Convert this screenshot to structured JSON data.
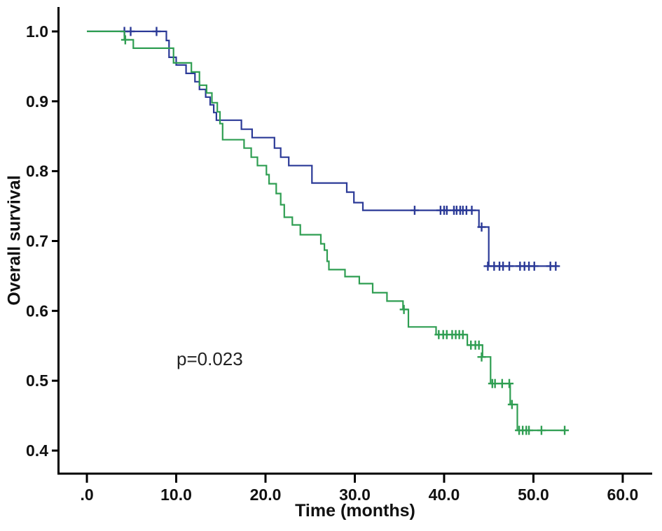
{
  "figure": {
    "background": "#ffffff",
    "axis_color": "#000000"
  },
  "chart_data": {
    "type": "line",
    "subtype": "kaplan-meier-step",
    "title": "",
    "xlabel": "Time (months)",
    "ylabel": "Overall survival",
    "annotation": {
      "text": "p=0.023",
      "x_months": 13.3,
      "y_survival": 0.53
    },
    "grid": false,
    "legend": "none",
    "xlim": [
      -3.22,
      63.3
    ],
    "ylim": [
      0.367,
      1.035
    ],
    "x_ticks": {
      "values": [
        0,
        10,
        20,
        30,
        40,
        50,
        60
      ],
      "labels": [
        ".0",
        "10.0",
        "20.0",
        "30.0",
        "40.0",
        "50.0",
        "60.0"
      ]
    },
    "y_ticks": {
      "values": [
        0.4,
        0.5,
        0.6,
        0.7,
        0.8,
        0.9,
        1.0
      ],
      "labels": [
        "0.4",
        "0.5",
        "0.6",
        "0.7",
        "0.8",
        "0.9",
        "1.0"
      ]
    },
    "series": [
      {
        "name": "group-blue",
        "color": "#2b3a97",
        "end_time": 52.8,
        "steps": [
          [
            0,
            1.0
          ],
          [
            8.9,
            0.987
          ],
          [
            9.2,
            0.963
          ],
          [
            10.0,
            0.952
          ],
          [
            11.1,
            0.94
          ],
          [
            12.1,
            0.928
          ],
          [
            12.6,
            0.917
          ],
          [
            13.3,
            0.906
          ],
          [
            13.8,
            0.895
          ],
          [
            14.2,
            0.884
          ],
          [
            14.5,
            0.873
          ],
          [
            17.3,
            0.86
          ],
          [
            18.5,
            0.848
          ],
          [
            21.0,
            0.833
          ],
          [
            21.7,
            0.82
          ],
          [
            22.6,
            0.808
          ],
          [
            25.2,
            0.783
          ],
          [
            29.1,
            0.77
          ],
          [
            29.9,
            0.755
          ],
          [
            30.9,
            0.744
          ],
          [
            43.9,
            0.72
          ],
          [
            45.0,
            0.664
          ]
        ],
        "censors": [
          [
            4.2,
            1.0
          ],
          [
            4.9,
            1.0
          ],
          [
            7.8,
            1.0
          ],
          [
            36.7,
            0.744
          ],
          [
            39.6,
            0.744
          ],
          [
            40.0,
            0.744
          ],
          [
            40.3,
            0.744
          ],
          [
            41.1,
            0.744
          ],
          [
            41.4,
            0.744
          ],
          [
            41.8,
            0.744
          ],
          [
            42.1,
            0.744
          ],
          [
            42.5,
            0.744
          ],
          [
            43.1,
            0.744
          ],
          [
            44.2,
            0.72
          ],
          [
            44.9,
            0.664
          ],
          [
            45.6,
            0.664
          ],
          [
            46.2,
            0.664
          ],
          [
            46.6,
            0.664
          ],
          [
            47.3,
            0.664
          ],
          [
            48.5,
            0.664
          ],
          [
            49.0,
            0.664
          ],
          [
            49.5,
            0.664
          ],
          [
            50.1,
            0.664
          ],
          [
            51.9,
            0.664
          ],
          [
            52.5,
            0.664
          ]
        ]
      },
      {
        "name": "group-green",
        "color": "#2f9e52",
        "end_time": 53.5,
        "steps": [
          [
            0,
            1.0
          ],
          [
            4.2,
            0.988
          ],
          [
            5.2,
            0.976
          ],
          [
            9.7,
            0.955
          ],
          [
            11.7,
            0.942
          ],
          [
            12.6,
            0.923
          ],
          [
            13.4,
            0.912
          ],
          [
            14.0,
            0.898
          ],
          [
            14.6,
            0.885
          ],
          [
            14.9,
            0.868
          ],
          [
            15.2,
            0.845
          ],
          [
            17.6,
            0.833
          ],
          [
            18.4,
            0.82
          ],
          [
            19.1,
            0.808
          ],
          [
            20.1,
            0.795
          ],
          [
            20.4,
            0.782
          ],
          [
            21.2,
            0.768
          ],
          [
            21.7,
            0.752
          ],
          [
            22.1,
            0.734
          ],
          [
            23.0,
            0.723
          ],
          [
            23.9,
            0.709
          ],
          [
            26.2,
            0.696
          ],
          [
            26.6,
            0.687
          ],
          [
            26.9,
            0.671
          ],
          [
            27.1,
            0.659
          ],
          [
            28.9,
            0.649
          ],
          [
            30.5,
            0.639
          ],
          [
            32.0,
            0.626
          ],
          [
            33.6,
            0.614
          ],
          [
            35.4,
            0.602
          ],
          [
            36.0,
            0.577
          ],
          [
            39.1,
            0.566
          ],
          [
            42.6,
            0.551
          ],
          [
            44.3,
            0.534
          ],
          [
            45.2,
            0.496
          ],
          [
            47.4,
            0.466
          ],
          [
            48.2,
            0.429
          ]
        ],
        "censors": [
          [
            4.3,
            0.988
          ],
          [
            35.5,
            0.602
          ],
          [
            39.4,
            0.566
          ],
          [
            39.9,
            0.566
          ],
          [
            40.3,
            0.566
          ],
          [
            40.9,
            0.566
          ],
          [
            41.3,
            0.566
          ],
          [
            41.7,
            0.566
          ],
          [
            42.1,
            0.566
          ],
          [
            43.0,
            0.551
          ],
          [
            43.5,
            0.551
          ],
          [
            43.9,
            0.551
          ],
          [
            44.2,
            0.534
          ],
          [
            45.4,
            0.496
          ],
          [
            45.7,
            0.496
          ],
          [
            46.5,
            0.496
          ],
          [
            47.3,
            0.496
          ],
          [
            47.6,
            0.466
          ],
          [
            48.4,
            0.429
          ],
          [
            48.8,
            0.429
          ],
          [
            49.2,
            0.429
          ],
          [
            49.5,
            0.429
          ],
          [
            50.9,
            0.429
          ],
          [
            53.5,
            0.429
          ]
        ]
      }
    ]
  }
}
